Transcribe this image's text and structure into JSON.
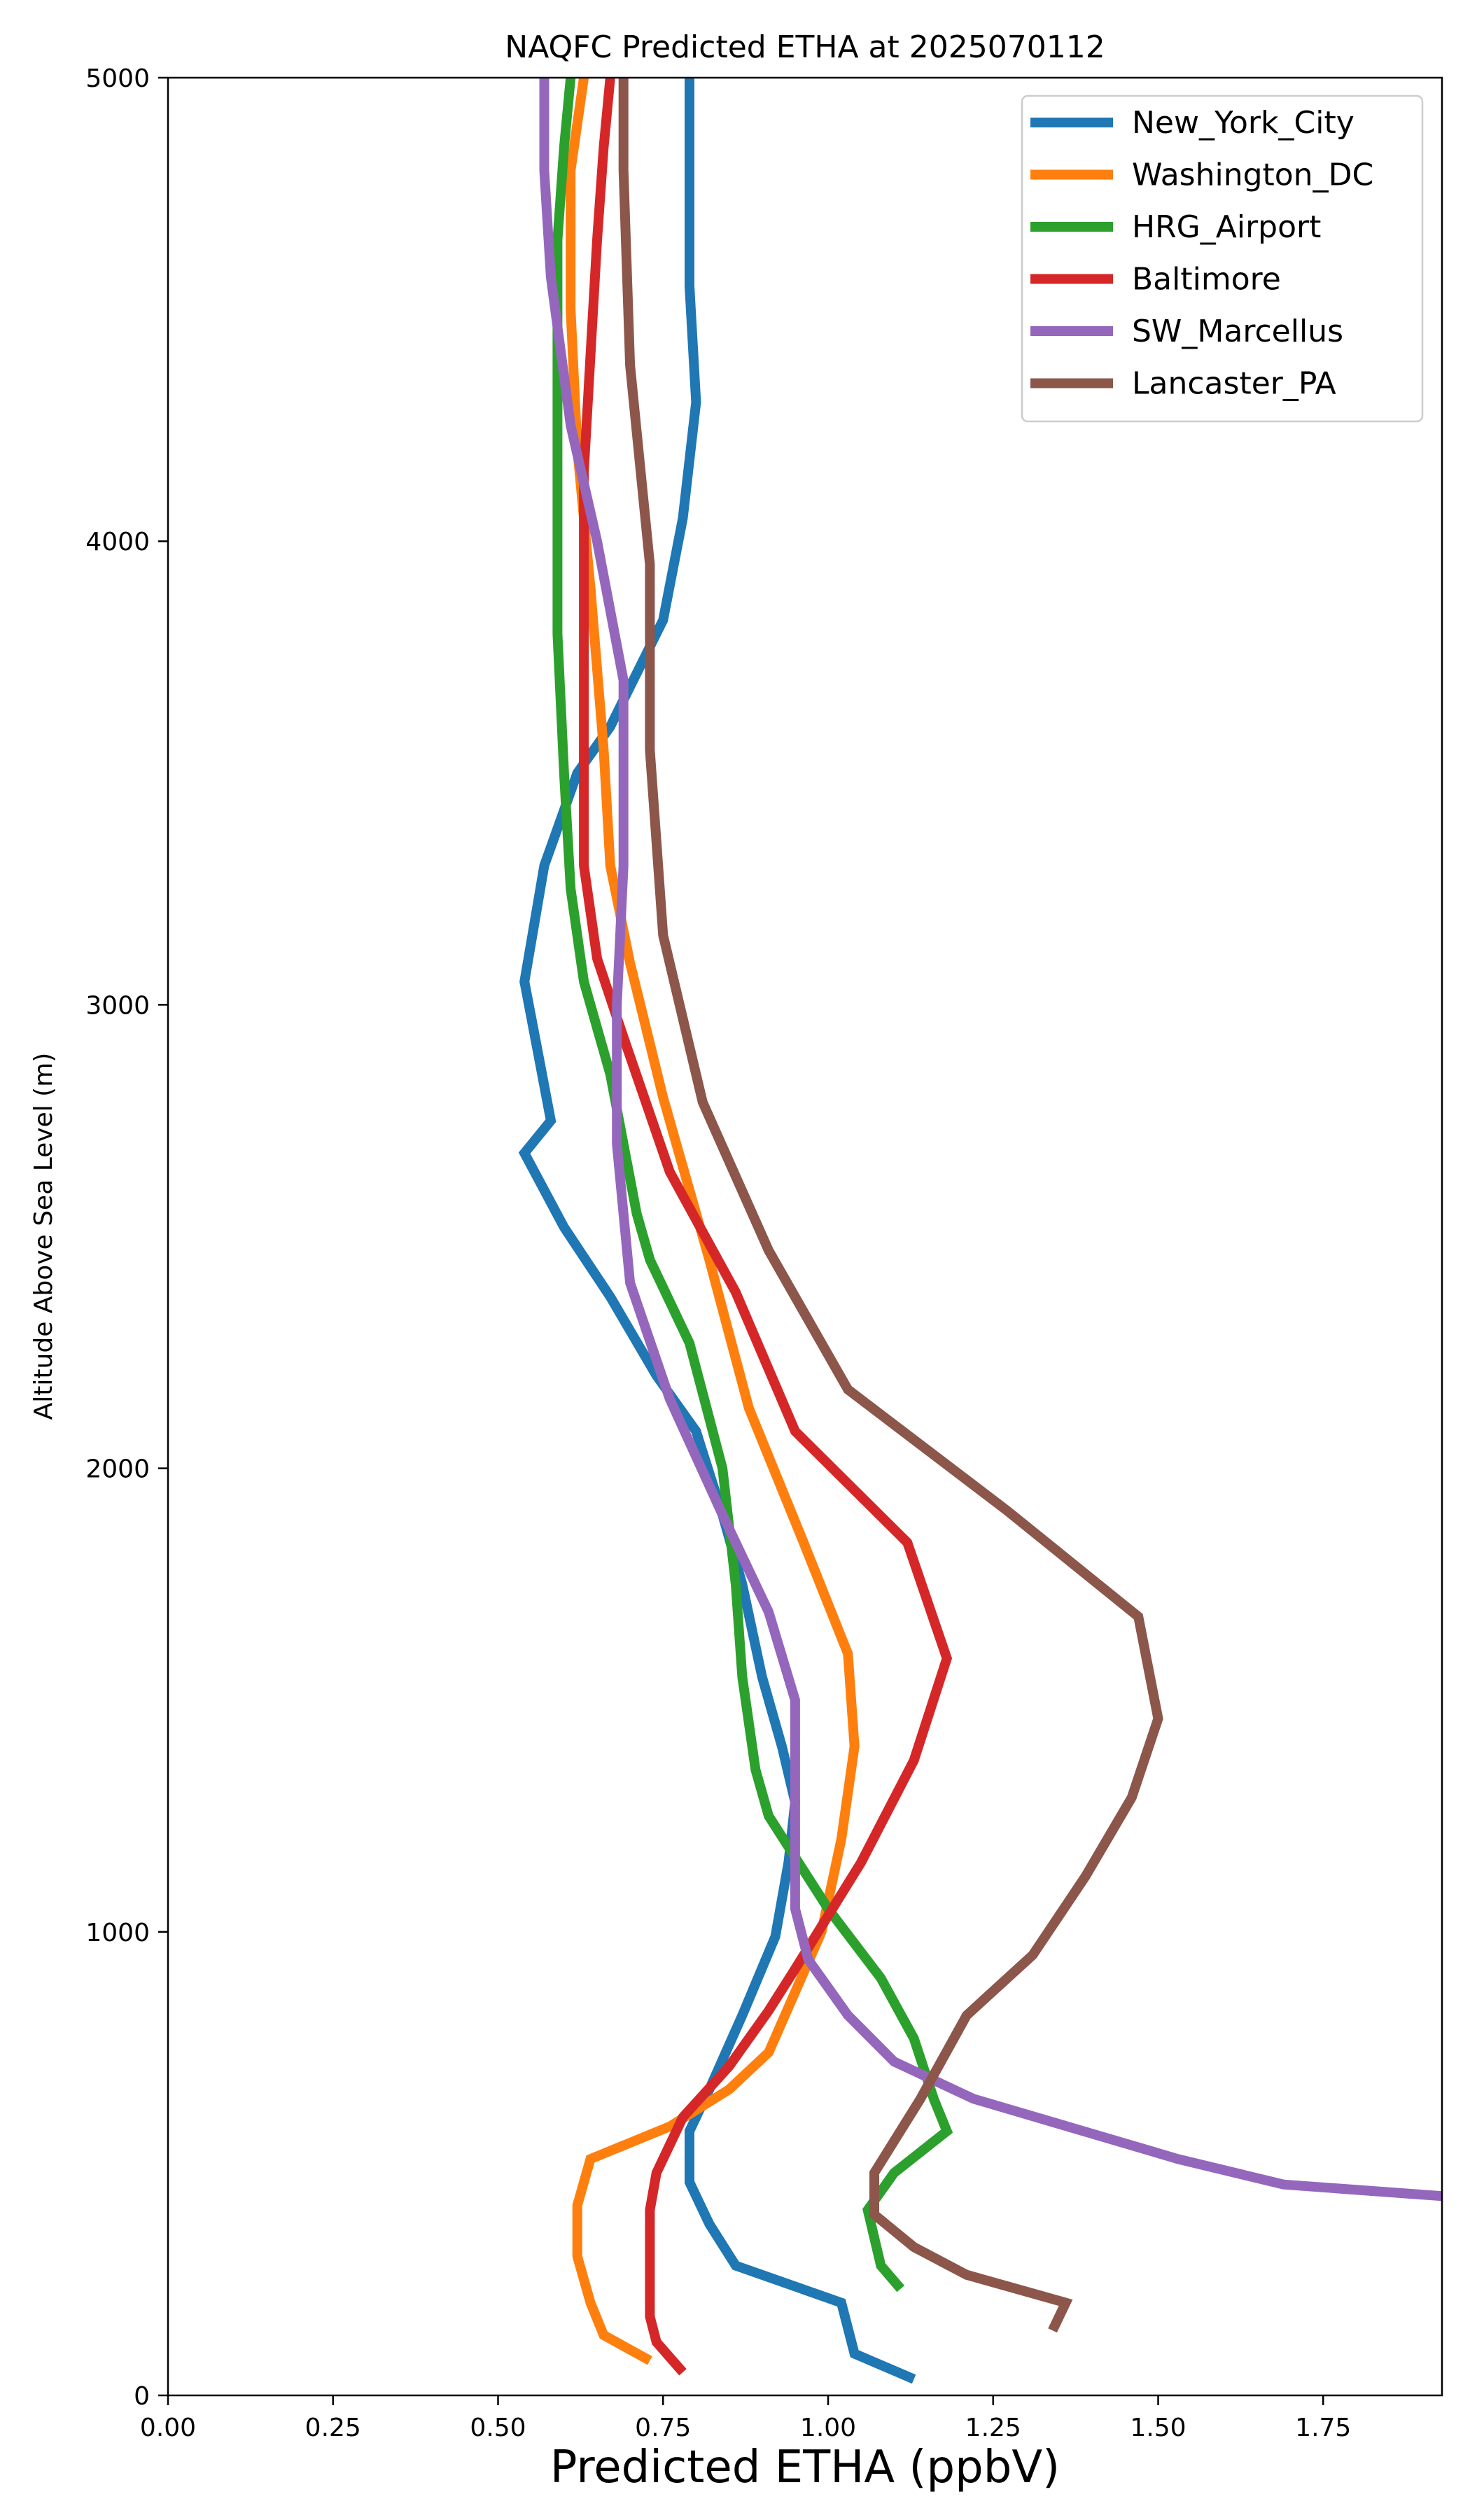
{
  "chart_data": {
    "type": "line",
    "title": "NAQFC Predicted ETHA at 2025070112",
    "xlabel": "Predicted ETHA (ppbV)",
    "ylabel": "Altitude Above Sea Level (m)",
    "xlim": [
      0.0,
      1.93
    ],
    "ylim": [
      0,
      5000
    ],
    "x_ticks": [
      "0.00",
      "0.25",
      "0.50",
      "0.75",
      "1.00",
      "1.25",
      "1.50",
      "1.75"
    ],
    "y_ticks": [
      "0",
      "1000",
      "2000",
      "3000",
      "4000",
      "5000"
    ],
    "grid": false,
    "legend_position": "top-right",
    "series": [
      {
        "name": "New_York_City",
        "color": "#1f77b4",
        "points": [
          [
            1.13,
            35
          ],
          [
            1.04,
            90
          ],
          [
            1.02,
            200
          ],
          [
            0.86,
            280
          ],
          [
            0.82,
            370
          ],
          [
            0.79,
            460
          ],
          [
            0.79,
            570
          ],
          [
            0.82,
            660
          ],
          [
            0.87,
            820
          ],
          [
            0.92,
            990
          ],
          [
            0.94,
            1150
          ],
          [
            0.95,
            1280
          ],
          [
            0.93,
            1400
          ],
          [
            0.9,
            1550
          ],
          [
            0.87,
            1750
          ],
          [
            0.84,
            1900
          ],
          [
            0.8,
            2080
          ],
          [
            0.74,
            2200
          ],
          [
            0.67,
            2370
          ],
          [
            0.6,
            2520
          ],
          [
            0.54,
            2680
          ],
          [
            0.58,
            2750
          ],
          [
            0.56,
            2900
          ],
          [
            0.54,
            3050
          ],
          [
            0.57,
            3300
          ],
          [
            0.62,
            3500
          ],
          [
            0.67,
            3600
          ],
          [
            0.75,
            3830
          ],
          [
            0.78,
            4050
          ],
          [
            0.8,
            4300
          ],
          [
            0.79,
            4550
          ],
          [
            0.79,
            4800
          ],
          [
            0.79,
            5000
          ]
        ]
      },
      {
        "name": "Washington_DC",
        "color": "#ff7f0e",
        "points": [
          [
            0.73,
            75
          ],
          [
            0.66,
            130
          ],
          [
            0.64,
            200
          ],
          [
            0.62,
            300
          ],
          [
            0.62,
            410
          ],
          [
            0.64,
            510
          ],
          [
            0.76,
            580
          ],
          [
            0.85,
            660
          ],
          [
            0.91,
            740
          ],
          [
            0.99,
            1000
          ],
          [
            1.02,
            1200
          ],
          [
            1.04,
            1400
          ],
          [
            1.03,
            1600
          ],
          [
            0.96,
            1850
          ],
          [
            0.88,
            2130
          ],
          [
            0.82,
            2450
          ],
          [
            0.75,
            2800
          ],
          [
            0.7,
            3090
          ],
          [
            0.67,
            3300
          ],
          [
            0.66,
            3550
          ],
          [
            0.64,
            3900
          ],
          [
            0.62,
            4200
          ],
          [
            0.61,
            4500
          ],
          [
            0.61,
            4800
          ],
          [
            0.63,
            5000
          ]
        ]
      },
      {
        "name": "HRG_Airport",
        "color": "#2ca02c",
        "points": [
          [
            1.11,
            230
          ],
          [
            1.08,
            280
          ],
          [
            1.06,
            400
          ],
          [
            1.1,
            480
          ],
          [
            1.18,
            570
          ],
          [
            1.16,
            640
          ],
          [
            1.13,
            770
          ],
          [
            1.08,
            900
          ],
          [
            1.0,
            1050
          ],
          [
            0.91,
            1250
          ],
          [
            0.89,
            1350
          ],
          [
            0.87,
            1550
          ],
          [
            0.86,
            1750
          ],
          [
            0.84,
            2000
          ],
          [
            0.79,
            2270
          ],
          [
            0.73,
            2450
          ],
          [
            0.71,
            2550
          ],
          [
            0.67,
            2850
          ],
          [
            0.63,
            3050
          ],
          [
            0.61,
            3250
          ],
          [
            0.6,
            3500
          ],
          [
            0.59,
            3800
          ],
          [
            0.59,
            4100
          ],
          [
            0.59,
            4400
          ],
          [
            0.59,
            4650
          ],
          [
            0.6,
            4850
          ],
          [
            0.61,
            5000
          ]
        ]
      },
      {
        "name": "Baltimore",
        "color": "#d62728",
        "points": [
          [
            0.78,
            50
          ],
          [
            0.74,
            115
          ],
          [
            0.73,
            170
          ],
          [
            0.73,
            290
          ],
          [
            0.73,
            400
          ],
          [
            0.74,
            480
          ],
          [
            0.78,
            600
          ],
          [
            0.85,
            710
          ],
          [
            0.91,
            830
          ],
          [
            0.95,
            920
          ],
          [
            1.05,
            1150
          ],
          [
            1.13,
            1370
          ],
          [
            1.18,
            1590
          ],
          [
            1.12,
            1840
          ],
          [
            0.95,
            2080
          ],
          [
            0.86,
            2380
          ],
          [
            0.76,
            2640
          ],
          [
            0.69,
            2930
          ],
          [
            0.65,
            3100
          ],
          [
            0.63,
            3300
          ],
          [
            0.63,
            3500
          ],
          [
            0.63,
            3700
          ],
          [
            0.63,
            3900
          ],
          [
            0.63,
            4150
          ],
          [
            0.64,
            4400
          ],
          [
            0.65,
            4650
          ],
          [
            0.66,
            4850
          ],
          [
            0.67,
            5000
          ]
        ]
      },
      {
        "name": "SW_Marcellus",
        "color": "#9467bd",
        "points": [
          [
            1.93,
            430
          ],
          [
            1.69,
            455
          ],
          [
            1.53,
            510
          ],
          [
            1.22,
            640
          ],
          [
            1.1,
            720
          ],
          [
            1.03,
            820
          ],
          [
            0.97,
            940
          ],
          [
            0.95,
            1050
          ],
          [
            0.95,
            1200
          ],
          [
            0.95,
            1320
          ],
          [
            0.95,
            1500
          ],
          [
            0.91,
            1690
          ],
          [
            0.84,
            1900
          ],
          [
            0.76,
            2150
          ],
          [
            0.7,
            2400
          ],
          [
            0.68,
            2700
          ],
          [
            0.68,
            3000
          ],
          [
            0.69,
            3300
          ],
          [
            0.69,
            3700
          ],
          [
            0.65,
            4000
          ],
          [
            0.61,
            4250
          ],
          [
            0.58,
            4570
          ],
          [
            0.57,
            4800
          ],
          [
            0.57,
            5000
          ]
        ]
      },
      {
        "name": "Lancaster_PA",
        "color": "#8c564b",
        "points": [
          [
            1.34,
            140
          ],
          [
            1.36,
            200
          ],
          [
            1.21,
            260
          ],
          [
            1.13,
            320
          ],
          [
            1.07,
            390
          ],
          [
            1.07,
            480
          ],
          [
            1.14,
            640
          ],
          [
            1.21,
            820
          ],
          [
            1.31,
            950
          ],
          [
            1.39,
            1120
          ],
          [
            1.46,
            1290
          ],
          [
            1.5,
            1460
          ],
          [
            1.47,
            1680
          ],
          [
            1.27,
            1910
          ],
          [
            1.03,
            2170
          ],
          [
            0.91,
            2470
          ],
          [
            0.81,
            2790
          ],
          [
            0.75,
            3150
          ],
          [
            0.73,
            3550
          ],
          [
            0.73,
            3950
          ],
          [
            0.7,
            4380
          ],
          [
            0.69,
            4800
          ],
          [
            0.69,
            5000
          ]
        ]
      }
    ]
  }
}
